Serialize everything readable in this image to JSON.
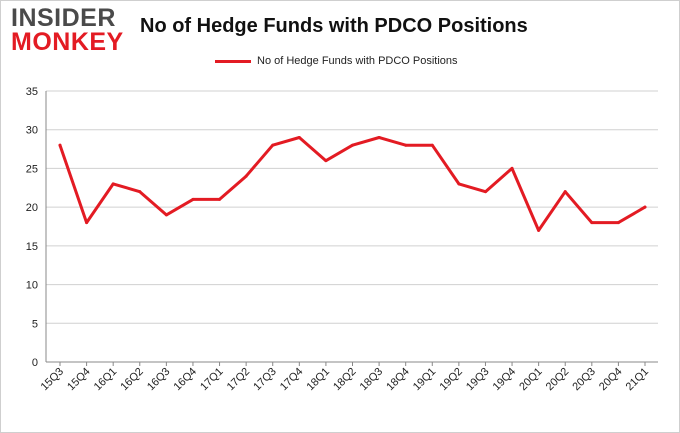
{
  "logo": {
    "line1": "INSIDER",
    "line2": "MONKEY"
  },
  "colors": {
    "series": "#e31b23",
    "grid": "#d0d0d0",
    "axis": "#888888"
  },
  "chart_data": {
    "type": "line",
    "title": "No of Hedge Funds with PDCO Positions",
    "xlabel": "",
    "ylabel": "",
    "ylim": [
      0,
      35
    ],
    "yticks": [
      0,
      5,
      10,
      15,
      20,
      25,
      30,
      35
    ],
    "grid": true,
    "legend_position": "top-center",
    "categories": [
      "15Q3",
      "15Q4",
      "16Q1",
      "16Q2",
      "16Q3",
      "16Q4",
      "17Q1",
      "17Q2",
      "17Q3",
      "17Q4",
      "18Q1",
      "18Q2",
      "18Q3",
      "18Q4",
      "19Q1",
      "19Q2",
      "19Q3",
      "19Q4",
      "20Q1",
      "20Q2",
      "20Q3",
      "20Q4",
      "21Q1"
    ],
    "series": [
      {
        "name": "No of Hedge Funds with PDCO Positions",
        "values": [
          28,
          18,
          23,
          22,
          19,
          21,
          21,
          24,
          28,
          29,
          26,
          28,
          29,
          28,
          28,
          23,
          22,
          25,
          17,
          22,
          18,
          18,
          20
        ]
      }
    ]
  }
}
